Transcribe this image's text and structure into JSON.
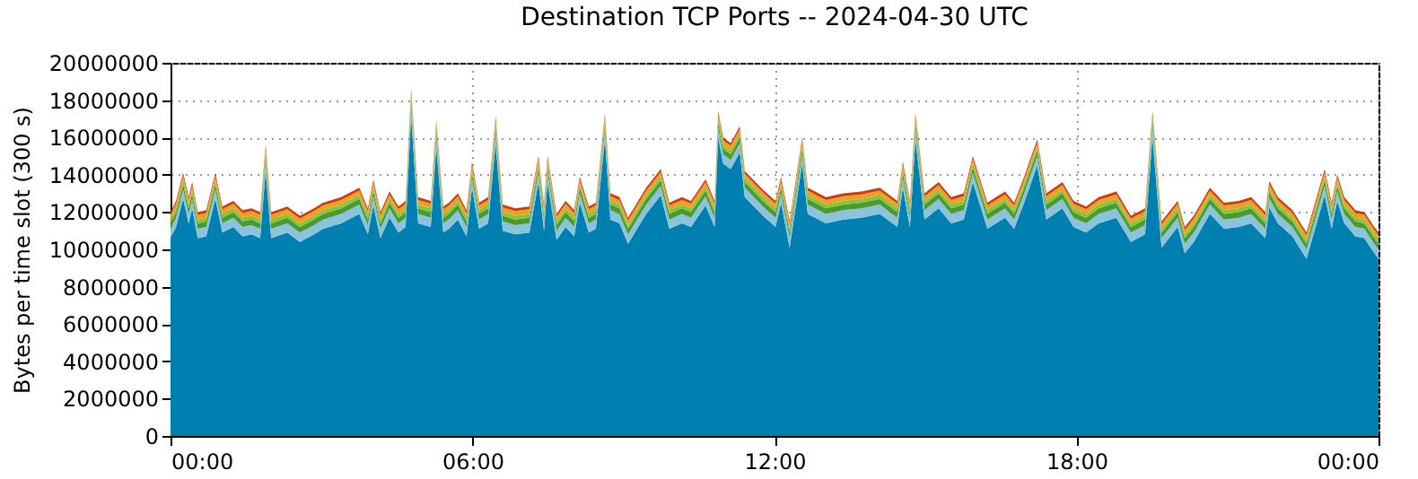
{
  "chart_data": {
    "type": "area",
    "stacked": true,
    "title": "Destination TCP Ports -- 2024-04-30 UTC",
    "ylabel": "Bytes per time slot (300 s)",
    "x": [
      0,
      0.11,
      0.25,
      0.36,
      0.43,
      0.54,
      0.71,
      0.89,
      1.03,
      1.25,
      1.43,
      1.61,
      1.78,
      1.89,
      2.0,
      2.32,
      2.57,
      2.85,
      3.03,
      3.39,
      3.75,
      3.92,
      4.03,
      4.17,
      4.35,
      4.53,
      4.67,
      4.78,
      4.92,
      5.17,
      5.28,
      5.42,
      5.53,
      5.71,
      5.88,
      5.99,
      6.13,
      6.31,
      6.46,
      6.6,
      6.85,
      7.13,
      7.31,
      7.42,
      7.49,
      7.67,
      7.85,
      8.02,
      8.13,
      8.31,
      8.45,
      8.63,
      8.74,
      8.92,
      9.09,
      9.45,
      9.74,
      9.91,
      10.16,
      10.34,
      10.63,
      10.81,
      10.88,
      10.98,
      11.13,
      11.31,
      11.41,
      11.77,
      12.02,
      12.13,
      12.3,
      12.55,
      12.66,
      13.02,
      13.37,
      13.73,
      14.09,
      14.44,
      14.55,
      14.69,
      14.8,
      14.98,
      15.26,
      15.51,
      15.76,
      15.94,
      16.23,
      16.4,
      16.58,
      16.76,
      16.94,
      17.22,
      17.4,
      17.72,
      17.94,
      18.19,
      18.44,
      18.79,
      19.08,
      19.36,
      19.51,
      19.69,
      20.01,
      20.15,
      20.33,
      20.65,
      20.93,
      21.22,
      21.47,
      21.75,
      21.83,
      22.0,
      22.29,
      22.57,
      22.93,
      23.07,
      23.18,
      23.32,
      23.54,
      23.72,
      23.89,
      24
    ],
    "series": [
      {
        "color": "#0080b0",
        "values": [
          10600000,
          11200000,
          12700000,
          11400000,
          12200000,
          10600000,
          10700000,
          12700000,
          10900000,
          11200000,
          10700000,
          10800000,
          10600000,
          14200000,
          10600000,
          10900000,
          10400000,
          10800000,
          11100000,
          11400000,
          11900000,
          10800000,
          12350000,
          10600000,
          11700000,
          10900000,
          11200000,
          17200000,
          11400000,
          11200000,
          15500000,
          10900000,
          11100000,
          11600000,
          10700000,
          13300000,
          11100000,
          11400000,
          15700000,
          11000000,
          10800000,
          10900000,
          13600000,
          11000000,
          13600000,
          10500000,
          11200000,
          10700000,
          12500000,
          10900000,
          11100000,
          15900000,
          11600000,
          11400000,
          10300000,
          11900000,
          12900000,
          11100000,
          11400000,
          11200000,
          12350000,
          11200000,
          16000000,
          14600000,
          14300000,
          15200000,
          12800000,
          11800000,
          11200000,
          12500000,
          10100000,
          14600000,
          11900000,
          11400000,
          11600000,
          11700000,
          11900000,
          11200000,
          13300000,
          11200000,
          15900000,
          11600000,
          12200000,
          11400000,
          11600000,
          13600000,
          11100000,
          11400000,
          11700000,
          11100000,
          12350000,
          14500000,
          11600000,
          12200000,
          11200000,
          10900000,
          11400000,
          11700000,
          10400000,
          10800000,
          16000000,
          10100000,
          11200000,
          9800000,
          10400000,
          11900000,
          11100000,
          11200000,
          11400000,
          10600000,
          12250000,
          11400000,
          10700000,
          9500000,
          12900000,
          11100000,
          12600000,
          11400000,
          10700000,
          10600000,
          9900000,
          9500000
        ]
      },
      {
        "color": "#8cc3dc",
        "values": [
          500000,
          500000,
          500000,
          500000,
          500000,
          500000,
          500000,
          500000,
          500000,
          500000,
          500000,
          500000,
          500000,
          500000,
          500000,
          500000,
          500000,
          500000,
          500000,
          500000,
          500000,
          500000,
          500000,
          500000,
          500000,
          500000,
          500000,
          500000,
          500000,
          500000,
          500000,
          500000,
          500000,
          500000,
          500000,
          500000,
          500000,
          500000,
          500000,
          500000,
          500000,
          500000,
          500000,
          500000,
          500000,
          500000,
          500000,
          500000,
          500000,
          500000,
          500000,
          500000,
          500000,
          500000,
          500000,
          500000,
          500000,
          500000,
          500000,
          500000,
          500000,
          500000,
          500000,
          500000,
          500000,
          500000,
          500000,
          500000,
          500000,
          500000,
          500000,
          500000,
          500000,
          500000,
          500000,
          500000,
          500000,
          500000,
          500000,
          500000,
          500000,
          500000,
          500000,
          500000,
          500000,
          500000,
          500000,
          500000,
          500000,
          500000,
          500000,
          500000,
          500000,
          500000,
          500000,
          500000,
          500000,
          500000,
          500000,
          500000,
          500000,
          500000,
          500000,
          500000,
          500000,
          500000,
          500000,
          500000,
          500000,
          500000,
          500000,
          500000,
          500000,
          500000,
          500000,
          500000,
          500000,
          500000,
          500000,
          500000,
          500000,
          500000
        ]
      },
      {
        "color": "#4a9a30",
        "values": [
          300000,
          300000,
          300000,
          300000,
          300000,
          300000,
          300000,
          300000,
          300000,
          300000,
          300000,
          300000,
          300000,
          300000,
          300000,
          300000,
          300000,
          300000,
          300000,
          300000,
          300000,
          300000,
          300000,
          300000,
          300000,
          300000,
          300000,
          300000,
          300000,
          300000,
          300000,
          300000,
          300000,
          300000,
          300000,
          300000,
          300000,
          300000,
          300000,
          300000,
          300000,
          300000,
          300000,
          300000,
          300000,
          300000,
          300000,
          300000,
          300000,
          300000,
          300000,
          300000,
          300000,
          300000,
          300000,
          300000,
          300000,
          300000,
          300000,
          300000,
          300000,
          300000,
          300000,
          300000,
          300000,
          300000,
          300000,
          300000,
          300000,
          300000,
          300000,
          300000,
          300000,
          300000,
          300000,
          300000,
          300000,
          300000,
          300000,
          300000,
          300000,
          300000,
          300000,
          300000,
          300000,
          300000,
          300000,
          300000,
          300000,
          300000,
          300000,
          300000,
          300000,
          300000,
          300000,
          300000,
          300000,
          300000,
          300000,
          300000,
          300000,
          300000,
          300000,
          300000,
          300000,
          300000,
          300000,
          300000,
          300000,
          300000,
          300000,
          300000,
          300000,
          300000,
          300000,
          300000,
          300000,
          300000,
          300000,
          300000,
          300000,
          300000
        ]
      },
      {
        "color": "#86c440",
        "values": [
          200000,
          200000,
          200000,
          200000,
          200000,
          200000,
          200000,
          200000,
          200000,
          200000,
          200000,
          200000,
          200000,
          200000,
          200000,
          200000,
          200000,
          200000,
          200000,
          200000,
          200000,
          200000,
          200000,
          200000,
          200000,
          200000,
          200000,
          200000,
          200000,
          200000,
          200000,
          200000,
          200000,
          200000,
          200000,
          200000,
          200000,
          200000,
          200000,
          200000,
          200000,
          200000,
          200000,
          200000,
          200000,
          200000,
          200000,
          200000,
          200000,
          200000,
          200000,
          200000,
          200000,
          200000,
          200000,
          200000,
          200000,
          200000,
          200000,
          200000,
          200000,
          200000,
          200000,
          200000,
          200000,
          200000,
          200000,
          200000,
          200000,
          200000,
          200000,
          200000,
          200000,
          200000,
          200000,
          200000,
          200000,
          200000,
          200000,
          200000,
          200000,
          200000,
          200000,
          200000,
          200000,
          200000,
          200000,
          200000,
          200000,
          200000,
          200000,
          200000,
          200000,
          200000,
          200000,
          200000,
          200000,
          200000,
          200000,
          200000,
          200000,
          200000,
          200000,
          200000,
          200000,
          200000,
          200000,
          200000,
          200000,
          200000,
          200000,
          200000,
          200000,
          200000,
          200000,
          200000,
          200000,
          200000,
          200000,
          200000,
          200000,
          200000
        ]
      },
      {
        "color": "#f0a020",
        "values": [
          250000,
          250000,
          250000,
          250000,
          250000,
          250000,
          250000,
          250000,
          250000,
          250000,
          250000,
          250000,
          250000,
          250000,
          250000,
          250000,
          250000,
          250000,
          250000,
          250000,
          250000,
          250000,
          250000,
          250000,
          250000,
          250000,
          250000,
          250000,
          250000,
          250000,
          250000,
          250000,
          250000,
          250000,
          250000,
          250000,
          250000,
          250000,
          250000,
          250000,
          250000,
          250000,
          250000,
          250000,
          250000,
          250000,
          250000,
          250000,
          250000,
          250000,
          250000,
          250000,
          250000,
          250000,
          250000,
          250000,
          250000,
          250000,
          250000,
          250000,
          250000,
          250000,
          250000,
          250000,
          250000,
          250000,
          250000,
          250000,
          250000,
          250000,
          250000,
          250000,
          250000,
          250000,
          250000,
          250000,
          250000,
          250000,
          250000,
          250000,
          250000,
          250000,
          250000,
          250000,
          250000,
          250000,
          250000,
          250000,
          250000,
          250000,
          250000,
          250000,
          250000,
          250000,
          250000,
          250000,
          250000,
          250000,
          250000,
          250000,
          250000,
          250000,
          250000,
          250000,
          250000,
          250000,
          250000,
          250000,
          250000,
          250000,
          250000,
          250000,
          250000,
          250000,
          250000,
          250000,
          250000,
          250000,
          250000,
          250000,
          250000,
          250000
        ]
      },
      {
        "color": "#c83c14",
        "values": [
          150000,
          150000,
          150000,
          150000,
          150000,
          150000,
          150000,
          150000,
          150000,
          150000,
          150000,
          150000,
          150000,
          150000,
          150000,
          150000,
          150000,
          150000,
          150000,
          150000,
          150000,
          150000,
          150000,
          150000,
          150000,
          150000,
          150000,
          150000,
          150000,
          150000,
          150000,
          150000,
          150000,
          150000,
          150000,
          150000,
          150000,
          150000,
          150000,
          150000,
          150000,
          150000,
          150000,
          150000,
          150000,
          150000,
          150000,
          150000,
          150000,
          150000,
          150000,
          150000,
          150000,
          150000,
          150000,
          150000,
          150000,
          150000,
          150000,
          150000,
          150000,
          150000,
          150000,
          150000,
          150000,
          150000,
          150000,
          150000,
          150000,
          150000,
          150000,
          150000,
          150000,
          150000,
          150000,
          150000,
          150000,
          150000,
          150000,
          150000,
          150000,
          150000,
          150000,
          150000,
          150000,
          150000,
          150000,
          150000,
          150000,
          150000,
          150000,
          150000,
          150000,
          150000,
          150000,
          150000,
          150000,
          150000,
          150000,
          150000,
          150000,
          150000,
          150000,
          150000,
          150000,
          150000,
          150000,
          150000,
          150000,
          150000,
          150000,
          150000,
          150000,
          150000,
          150000,
          150000,
          150000,
          150000,
          150000,
          150000,
          150000,
          150000
        ]
      }
    ],
    "xlim": [
      0,
      24
    ],
    "xticks": [
      {
        "value": 0,
        "label": "00:00"
      },
      {
        "value": 6,
        "label": "06:00"
      },
      {
        "value": 12,
        "label": "12:00"
      },
      {
        "value": 18,
        "label": "18:00"
      },
      {
        "value": 24,
        "label": "00:00"
      }
    ],
    "ylim": [
      0,
      20000000
    ],
    "yticks": [
      0,
      2000000,
      4000000,
      6000000,
      8000000,
      10000000,
      12000000,
      14000000,
      16000000,
      18000000,
      20000000
    ],
    "grid": true
  }
}
